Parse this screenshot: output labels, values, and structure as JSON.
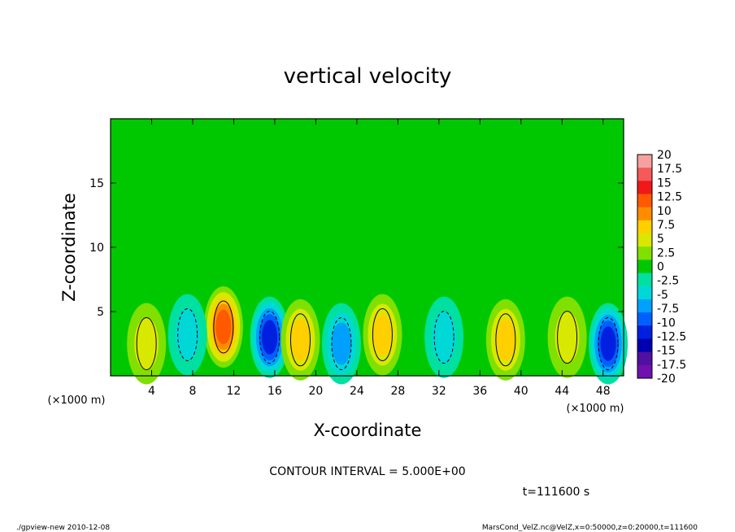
{
  "chart_data": {
    "type": "heatmap",
    "title": "vertical velocity",
    "xlabel": "X-coordinate",
    "ylabel": "Z-coordinate",
    "x_unit": "(×1000 m)",
    "y_unit": "(×1000 m)",
    "xlim": [
      0,
      50
    ],
    "ylim": [
      0,
      20
    ],
    "x_ticks": [
      4,
      8,
      12,
      16,
      20,
      24,
      28,
      32,
      36,
      40,
      44,
      48
    ],
    "y_ticks": [
      5,
      10,
      15
    ],
    "contour_interval_text": "CONTOUR INTERVAL = 5.000E+00",
    "time_text": "t=111600 s",
    "colorbar": {
      "labels": [
        "20",
        "17.5",
        "15",
        "12.5",
        "10",
        "7.5",
        "5",
        "2.5",
        "0",
        "-2.5",
        "-5",
        "-7.5",
        "-10",
        "-12.5",
        "-15",
        "-17.5",
        "-20"
      ],
      "colors": [
        "#f7a0a0",
        "#f45a5a",
        "#f01818",
        "#ff5a00",
        "#ff8c00",
        "#ffd000",
        "#d8e800",
        "#80e000",
        "#00c800",
        "#00e0a0",
        "#00d8d8",
        "#00a0ff",
        "#0060ff",
        "#0020e0",
        "#0000b0",
        "#5010a0",
        "#7010b0"
      ]
    },
    "features": [
      {
        "x": 11,
        "z": 3.8,
        "value": 12.5,
        "kind": "updraft"
      },
      {
        "x": 15.5,
        "z": 3.0,
        "value": -12.5,
        "kind": "downdraft"
      },
      {
        "x": 18.5,
        "z": 2.8,
        "value": 7.5,
        "kind": "updraft"
      },
      {
        "x": 22.5,
        "z": 2.5,
        "value": -7.5,
        "kind": "downdraft"
      },
      {
        "x": 26.5,
        "z": 3.2,
        "value": 7.5,
        "kind": "updraft"
      },
      {
        "x": 32.5,
        "z": 3.0,
        "value": -5,
        "kind": "downdraft"
      },
      {
        "x": 38.5,
        "z": 2.8,
        "value": 7.5,
        "kind": "updraft"
      },
      {
        "x": 44.5,
        "z": 3.0,
        "value": 5,
        "kind": "updraft"
      },
      {
        "x": 48.5,
        "z": 2.5,
        "value": -12.5,
        "kind": "downdraft"
      },
      {
        "x": 7.5,
        "z": 3.2,
        "value": -5,
        "kind": "downdraft"
      },
      {
        "x": 3.5,
        "z": 2.5,
        "value": 5,
        "kind": "updraft"
      }
    ]
  },
  "footer": {
    "left": "./gpview-new   2010-12-08",
    "right": "MarsCond_VelZ.nc@VelZ,x=0:50000,z=0:20000,t=111600"
  }
}
